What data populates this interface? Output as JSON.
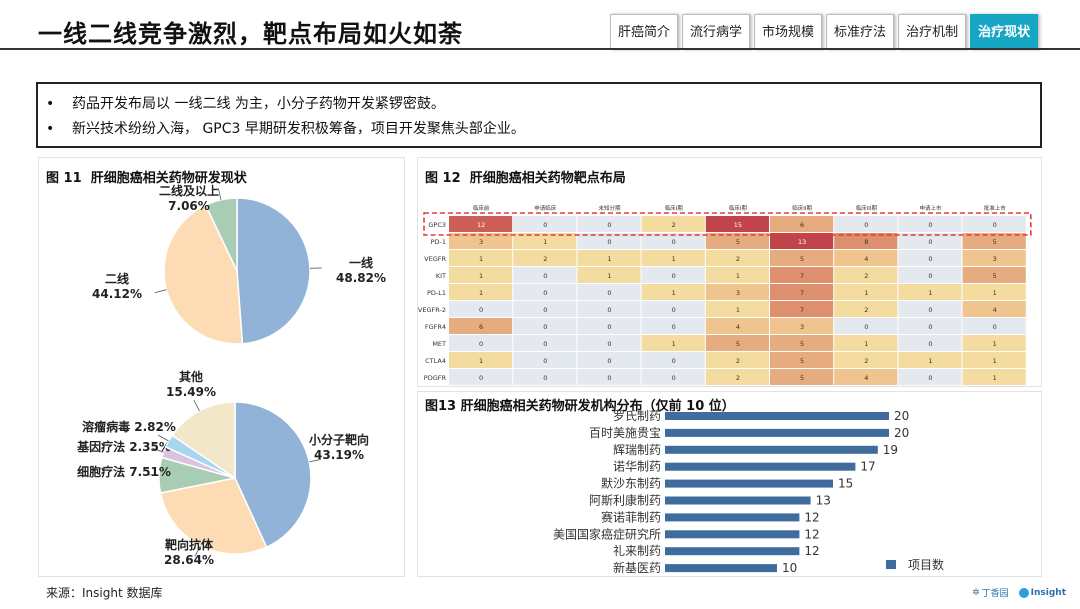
{
  "header": {
    "title": "一线二线竞争激烈，靶点布局如火如荼",
    "tabs": [
      {
        "label": "肝癌简介",
        "active": false
      },
      {
        "label": "流行病学",
        "active": false
      },
      {
        "label": "市场规模",
        "active": false
      },
      {
        "label": "标准疗法",
        "active": false
      },
      {
        "label": "治疗机制",
        "active": false
      },
      {
        "label": "治疗现状",
        "active": true
      }
    ]
  },
  "summary": {
    "bullets": [
      "药品开发布局以 一线二线 为主，小分子药物开发紧锣密鼓。",
      "新兴技术纷纷入海， GPC3 早期研发积极筹备，项目开发聚焦头部企业。"
    ]
  },
  "footer": {
    "source": "来源：Insight 数据库",
    "logo_left": "丁香园",
    "logo_right": "Insight"
  },
  "colors": {
    "blue": "#91b3d7",
    "peach": "#fddcb5",
    "sage": "#a9ccb5",
    "cream": "#f2e7c9",
    "lightblue": "#a9d6ef",
    "lavender": "#d9c3df",
    "bar": "#3f6c9c",
    "tab_active": "#17a7c5",
    "highlight": "#e53935"
  },
  "chart_data": [
    {
      "type": "pie",
      "figure": "图 11",
      "title": "肝细胞癌相关药物研发现状",
      "slices": [
        {
          "label": "一线",
          "value": 48.82,
          "pct": "48.82%",
          "color": "#91b3d7"
        },
        {
          "label": "二线",
          "value": 44.12,
          "pct": "44.12%",
          "color": "#fddcb5"
        },
        {
          "label": "二线及以上",
          "value": 7.06,
          "pct": "7.06%",
          "color": "#a9ccb5"
        }
      ]
    },
    {
      "type": "pie",
      "slices": [
        {
          "label": "小分子靶向",
          "value": 43.19,
          "pct": "43.19%",
          "color": "#91b3d7"
        },
        {
          "label": "靶向抗体",
          "value": 28.64,
          "pct": "28.64%",
          "color": "#fddcb5"
        },
        {
          "label": "细胞疗法",
          "value": 7.51,
          "pct": "7.51%",
          "color": "#a9ccb5"
        },
        {
          "label": "基因疗法",
          "value": 2.35,
          "pct": "2.35%",
          "color": "#d9c3df"
        },
        {
          "label": "溶瘤病毒",
          "value": 2.82,
          "pct": "2.82%",
          "color": "#a9d6ef"
        },
        {
          "label": "其他",
          "value": 15.49,
          "pct": "15.49%",
          "color": "#f2e7c9"
        }
      ]
    },
    {
      "type": "heatmap",
      "figure": "图 12",
      "title": "肝细胞癌相关药物靶点布局",
      "columns": [
        "临床前",
        "申请临床",
        "未知分期",
        "临床I期",
        "临床I期",
        "临床II期",
        "临床III期",
        "申请上市",
        "批准上市"
      ],
      "rows": [
        "GPC3",
        "PD-1",
        "VEGFR",
        "KIT",
        "PD-L1",
        "VEGFR-2",
        "FGFR4",
        "MET",
        "CTLA4",
        "PDGFR"
      ],
      "values": [
        [
          12,
          0,
          0,
          2,
          15,
          6,
          0,
          0,
          0
        ],
        [
          3,
          1,
          0,
          0,
          5,
          13,
          8,
          0,
          5
        ],
        [
          1,
          2,
          1,
          1,
          2,
          5,
          4,
          0,
          3
        ],
        [
          1,
          0,
          1,
          0,
          1,
          7,
          2,
          0,
          5
        ],
        [
          1,
          0,
          0,
          1,
          3,
          7,
          1,
          1,
          1
        ],
        [
          0,
          0,
          0,
          0,
          1,
          7,
          2,
          0,
          4
        ],
        [
          6,
          0,
          0,
          0,
          4,
          3,
          0,
          0,
          0
        ],
        [
          0,
          0,
          0,
          1,
          5,
          5,
          1,
          0,
          1
        ],
        [
          1,
          0,
          0,
          0,
          2,
          5,
          2,
          1,
          1
        ],
        [
          0,
          0,
          0,
          0,
          2,
          5,
          4,
          0,
          1
        ]
      ],
      "highlighted_row": "GPC3"
    },
    {
      "type": "bar",
      "orientation": "horizontal",
      "figure": "图13",
      "title": "肝细胞癌相关药物研发机构分布（仅前 10 位）",
      "categories": [
        "罗氏制药",
        "百时美施贵宝",
        "辉瑞制药",
        "诺华制药",
        "默沙东制药",
        "阿斯利康制药",
        "赛诺菲制药",
        "美国国家癌症研究所",
        "礼来制药",
        "新基医药"
      ],
      "series": [
        {
          "name": "项目数",
          "values": [
            20,
            20,
            19,
            17,
            15,
            13,
            12,
            12,
            12,
            10
          ]
        }
      ]
    }
  ]
}
